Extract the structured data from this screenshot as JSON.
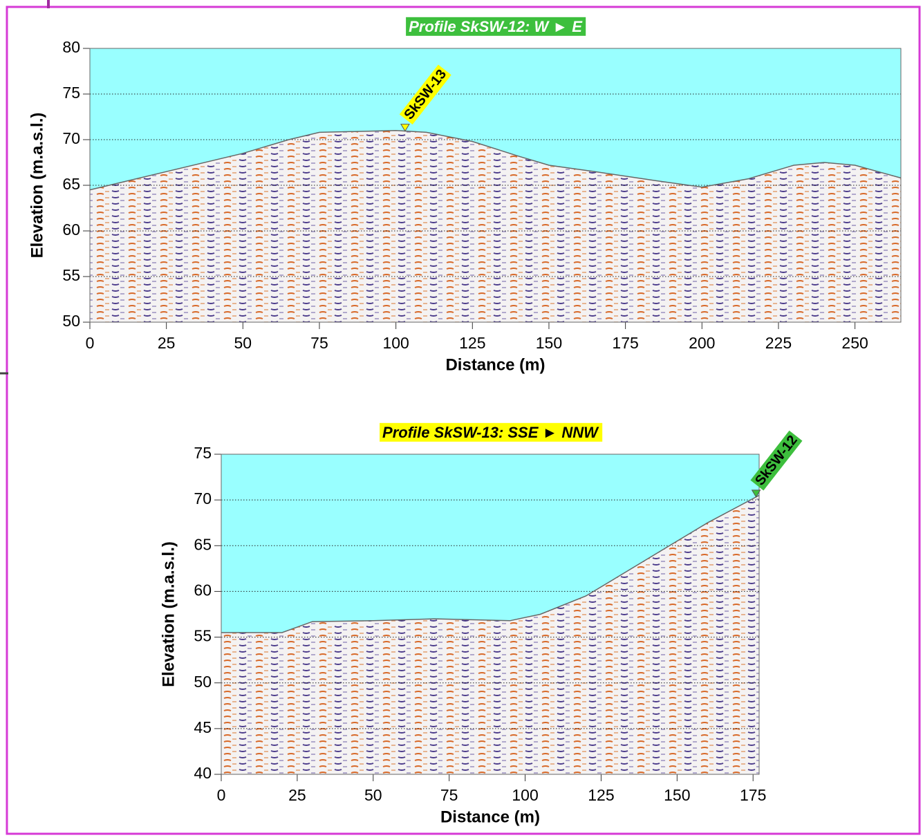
{
  "chart_data": [
    {
      "type": "area",
      "title": "Profile SkSW-12: W ► E",
      "title_color": "#3dbf3d",
      "title_text_color": "#ffffff",
      "xlabel": "Distance (m)",
      "ylabel": "Elevation (m.a.s.l.)",
      "x": [
        0,
        25,
        50,
        65,
        75,
        100,
        110,
        125,
        140,
        150,
        165,
        185,
        200,
        215,
        230,
        240,
        250,
        265
      ],
      "values": [
        64.5,
        66.5,
        68.5,
        70,
        70.8,
        71,
        70.8,
        69.8,
        68.2,
        67.2,
        66.5,
        65.5,
        64.8,
        65.7,
        67.2,
        67.5,
        67.2,
        65.8
      ],
      "xlim": [
        0,
        265
      ],
      "ylim": [
        50,
        80
      ],
      "xticks": [
        0,
        25,
        50,
        75,
        100,
        125,
        150,
        175,
        200,
        225,
        250
      ],
      "yticks": [
        50,
        55,
        60,
        65,
        70,
        75,
        80
      ],
      "grid": true,
      "sky_color": "#99ffff",
      "annotation": {
        "label": "SkSW-13",
        "x": 103,
        "color": "#ffff00"
      }
    },
    {
      "type": "area",
      "title": "Profile SkSW-13: SSE ► NNW",
      "title_color": "#ffff00",
      "title_text_color": "#000000",
      "xlabel": "Distance (m)",
      "ylabel": "Elevation (m.a.s.l.)",
      "x": [
        0,
        20,
        30,
        50,
        70,
        95,
        105,
        120,
        130,
        145,
        160,
        177
      ],
      "values": [
        55.5,
        55.5,
        56.7,
        56.8,
        57,
        56.8,
        57.5,
        59.5,
        61.5,
        64.5,
        67.5,
        70.5
      ],
      "xlim": [
        0,
        177
      ],
      "ylim": [
        40,
        75
      ],
      "xticks": [
        0,
        25,
        50,
        75,
        100,
        125,
        150,
        175
      ],
      "yticks": [
        40,
        45,
        50,
        55,
        60,
        65,
        70,
        75
      ],
      "grid": true,
      "sky_color": "#99ffff",
      "annotation": {
        "label": "SkSW-12",
        "x": 176,
        "color": "#3dbf3d"
      }
    }
  ]
}
